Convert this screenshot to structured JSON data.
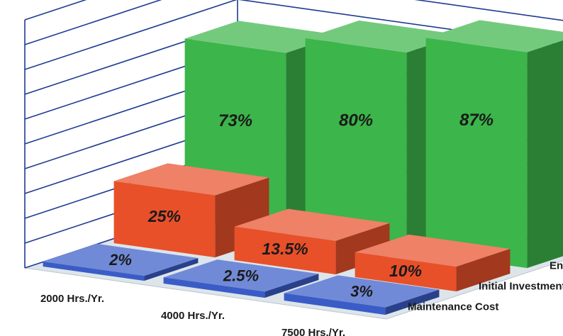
{
  "chart_data": {
    "type": "bar",
    "title": "",
    "categories": [
      "2000 Hrs./Yr.",
      "4000 Hrs./Yr.",
      "7500 Hrs./Yr."
    ],
    "series": [
      {
        "name": "Energy Cost",
        "values": [
          73,
          80,
          87
        ],
        "labels": [
          "73%",
          "80%",
          "87%"
        ],
        "color": "#3cb54a"
      },
      {
        "name": "Initial Investment",
        "values": [
          25,
          13.5,
          10
        ],
        "labels": [
          "25%",
          "13.5%",
          "10%"
        ],
        "color": "#e8502a"
      },
      {
        "name": "Maintenance Cost",
        "values": [
          2,
          2.5,
          3
        ],
        "labels": [
          "2%",
          "2.5%",
          "3%"
        ],
        "color": "#3a5cc7"
      }
    ],
    "ylim": [
      0,
      100
    ],
    "grid": true,
    "style": "3d-column"
  }
}
